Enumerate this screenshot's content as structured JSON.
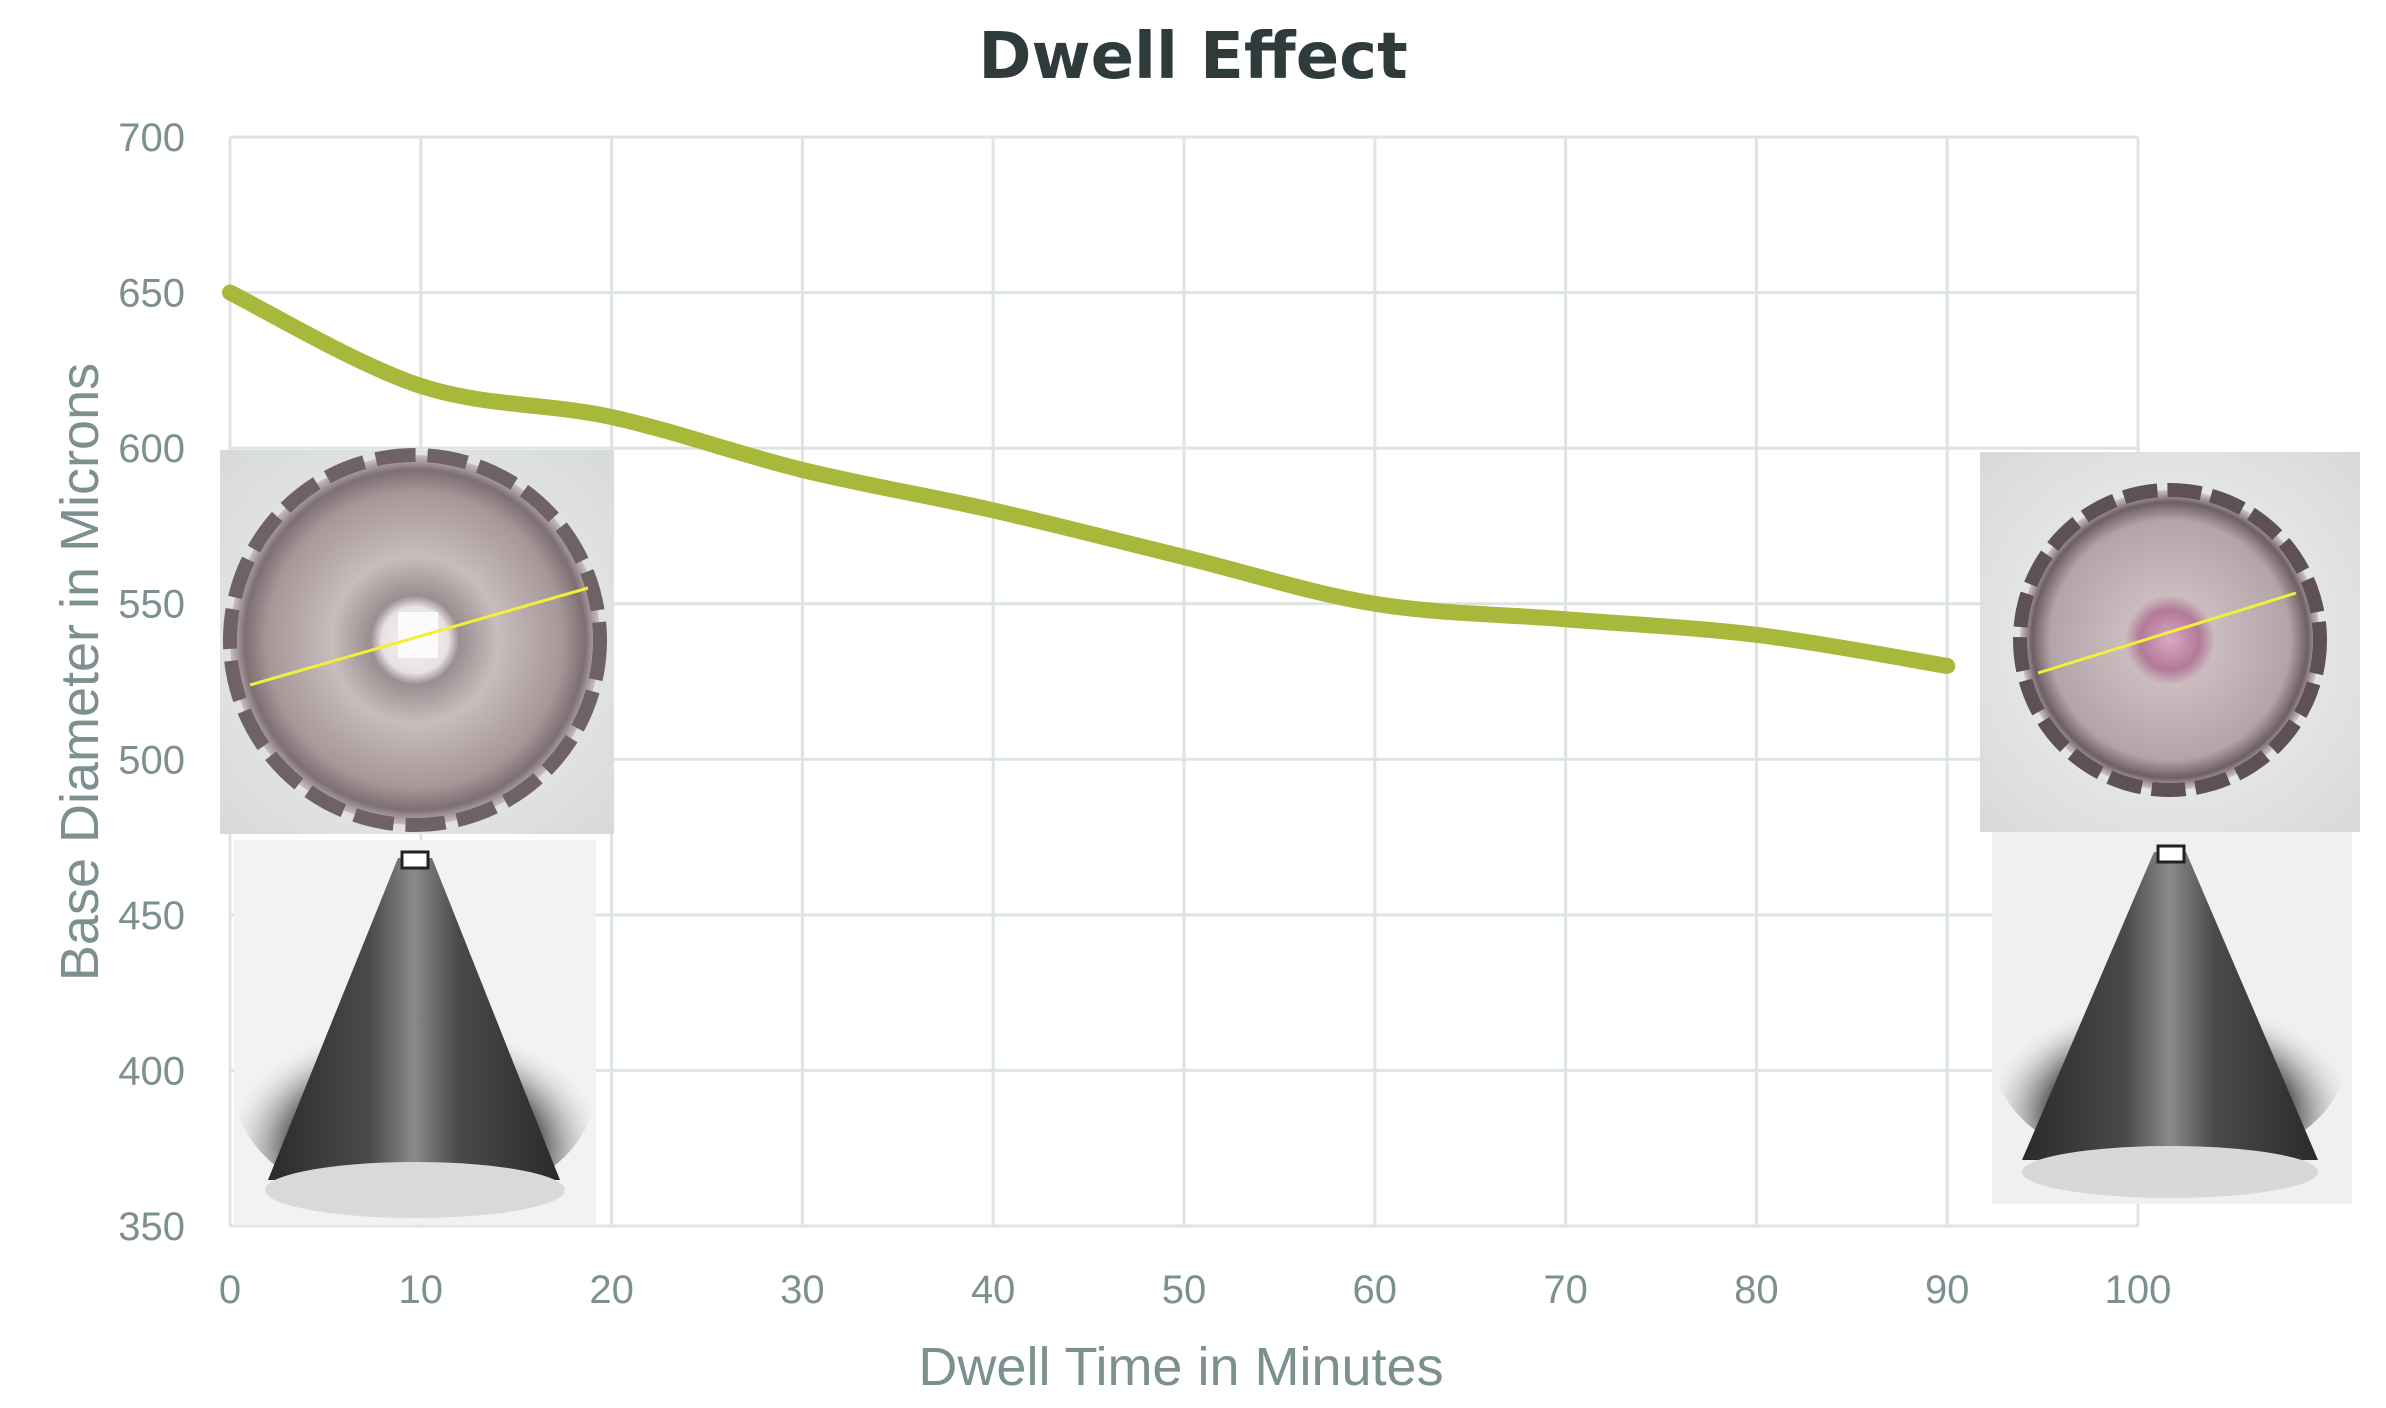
{
  "chart_data": {
    "type": "line",
    "title": "Dwell Effect",
    "xlabel": "Dwell Time in Minutes",
    "ylabel": "Base Diameter in Microns",
    "xlim": [
      0,
      100
    ],
    "ylim": [
      350,
      700
    ],
    "x_ticks": [
      "0",
      "10",
      "20",
      "30",
      "40",
      "50",
      "60",
      "70",
      "80",
      "90",
      "100"
    ],
    "y_ticks": [
      "350",
      "400",
      "450",
      "500",
      "550",
      "600",
      "650",
      "700"
    ],
    "grid": true,
    "series": [
      {
        "color": "#a8b83a",
        "x": [
          0,
          10,
          20,
          30,
          40,
          50,
          60,
          70,
          80,
          90
        ],
        "y": [
          650,
          620,
          610,
          593,
          580,
          565,
          550,
          545,
          540,
          530
        ]
      }
    ]
  },
  "images": {
    "left_top": "circular-crater-photo-icon",
    "left_bottom": "cone-profile-photo-icon",
    "right_top": "circular-crater-photo-icon",
    "right_bottom": "cone-profile-photo-icon"
  }
}
